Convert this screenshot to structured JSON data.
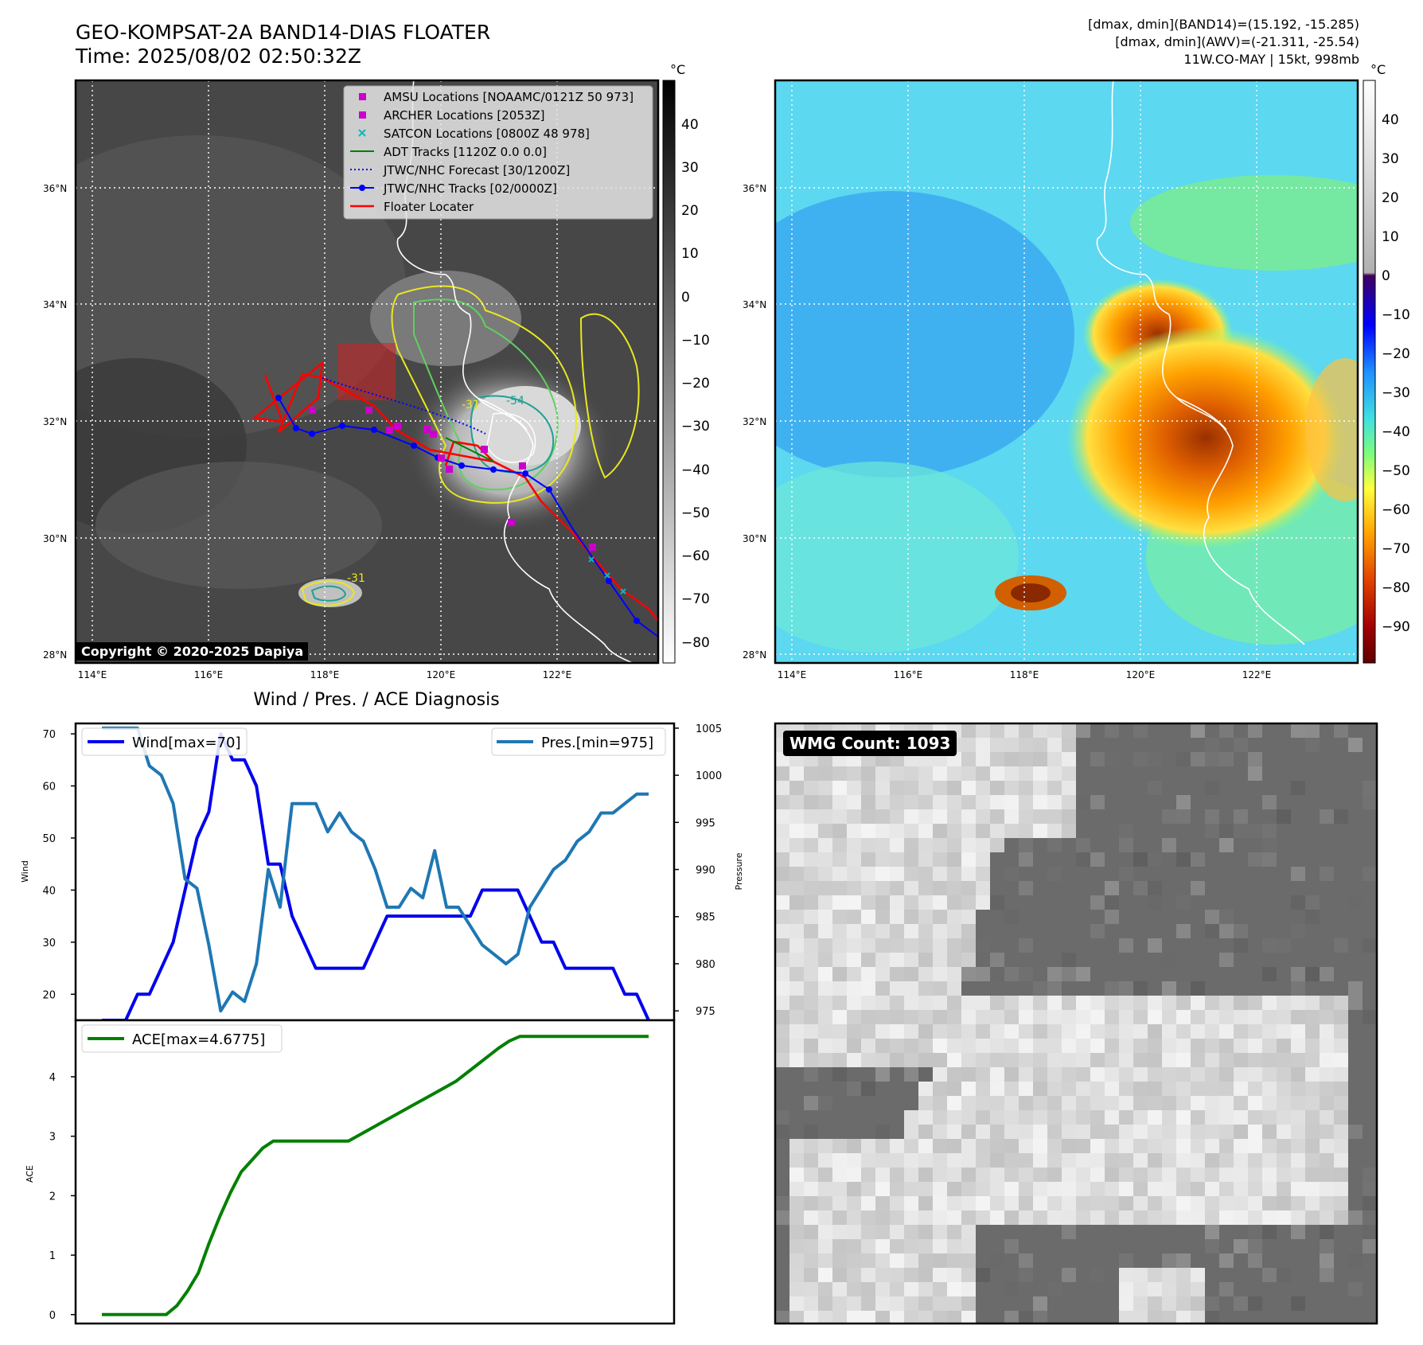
{
  "header": {
    "title_line1": "GEO-KOMPSAT-2A BAND14-DIAS FLOATER",
    "title_line2": "Time: 2025/08/02 02:50:32Z",
    "info_line1": "[dmax, dmin](BAND14)=(15.192, -15.285)",
    "info_line2": "[dmax, dmin](AWV)=(-21.311, -25.54)",
    "info_line3": "11W.CO-MAY | 15kt, 998mb"
  },
  "colors": {
    "wind": "#0000ee",
    "pressure": "#1f77b4",
    "ace": "#008000",
    "track_jtwc": "#0000ff",
    "floater": "#ff0000",
    "amsu": "#cc00cc",
    "satcon": "#00bbbb"
  },
  "map_left": {
    "unit": "°C",
    "colorbar_ticks": [
      "40",
      "30",
      "20",
      "10",
      "0",
      "−10",
      "−20",
      "−30",
      "−40",
      "−50",
      "−60",
      "−70",
      "−80"
    ],
    "lat_labels": [
      "36°N",
      "34°N",
      "32°N",
      "30°N",
      "28°N"
    ],
    "lon_labels": [
      "114°E",
      "116°E",
      "118°E",
      "120°E",
      "122°E"
    ],
    "copyright": "Copyright © 2020-2025 Dapiya",
    "contour_labels": [
      "-54",
      "-31",
      "-31"
    ],
    "legend": [
      {
        "label": "AMSU Locations [NOAAMC/0121Z 50 973]",
        "icon": "square-marker"
      },
      {
        "label": "ARCHER Locations [2053Z]",
        "icon": "square-marker"
      },
      {
        "label": "SATCON Locations [0800Z 48 978]",
        "icon": "x-marker"
      },
      {
        "label": "ADT Tracks [1120Z 0.0 0.0]",
        "icon": "solid-line"
      },
      {
        "label": "JTWC/NHC Forecast [30/1200Z]",
        "icon": "dotted-line"
      },
      {
        "label": "JTWC/NHC Tracks [02/0000Z]",
        "icon": "dot-line"
      },
      {
        "label": "Floater Locater",
        "icon": "solid-line"
      }
    ]
  },
  "map_right": {
    "unit": "°C",
    "colorbar_ticks": [
      "40",
      "30",
      "20",
      "10",
      "0",
      "−10",
      "−20",
      "−30",
      "−40",
      "−50",
      "−60",
      "−70",
      "−80",
      "−90"
    ],
    "lat_labels": [
      "36°N",
      "34°N",
      "32°N",
      "30°N",
      "28°N"
    ],
    "lon_labels": [
      "114°E",
      "116°E",
      "118°E",
      "120°E",
      "122°E"
    ]
  },
  "wmg": {
    "label": "WMG Count: 1093"
  },
  "chart_data": [
    {
      "type": "line",
      "title": "Wind / Pres. / ACE Diagnosis",
      "ylabel": "Wind",
      "y2label": "Pressure",
      "ylim": [
        15,
        72
      ],
      "y2lim": [
        974,
        1005.5
      ],
      "yticks": [
        20,
        30,
        40,
        50,
        60,
        70
      ],
      "y2ticks": [
        975,
        980,
        985,
        990,
        995,
        1000,
        1005
      ],
      "legend_left": "Wind[max=70]",
      "legend_right": "Pres.[min=975]",
      "series": [
        {
          "name": "Wind[max=70]",
          "axis": "left",
          "values": [
            15,
            15,
            15,
            20,
            20,
            25,
            30,
            40,
            50,
            55,
            70,
            65,
            65,
            60,
            45,
            45,
            35,
            30,
            25,
            25,
            25,
            25,
            25,
            30,
            35,
            35,
            35,
            35,
            35,
            35,
            35,
            35,
            40,
            40,
            40,
            40,
            35,
            30,
            30,
            25,
            25,
            25,
            25,
            25,
            20,
            20,
            15
          ]
        },
        {
          "name": "Pres.[min=975]",
          "axis": "right",
          "values": [
            1005,
            1005,
            1005,
            1005,
            1001,
            1000,
            997,
            989,
            988,
            982,
            975,
            977,
            976,
            980,
            990,
            986,
            997,
            997,
            997,
            994,
            996,
            994,
            993,
            990,
            986,
            986,
            988,
            987,
            992,
            986,
            986,
            984,
            982,
            981,
            980,
            981,
            986,
            988,
            990,
            991,
            993,
            994,
            996,
            996,
            997,
            998,
            998
          ]
        }
      ]
    },
    {
      "type": "line",
      "ylabel": "ACE",
      "ylim": [
        -0.15,
        4.95
      ],
      "yticks": [
        0,
        1,
        2,
        3,
        4
      ],
      "series": [
        {
          "name": "ACE[max=4.6775]",
          "values": [
            0,
            0,
            0,
            0,
            0,
            0,
            0,
            0.15,
            0.4,
            0.7,
            1.2,
            1.65,
            2.05,
            2.4,
            2.6,
            2.8,
            2.92,
            2.92,
            2.92,
            2.92,
            2.92,
            2.92,
            2.92,
            2.92,
            3.02,
            3.12,
            3.22,
            3.32,
            3.42,
            3.52,
            3.62,
            3.72,
            3.82,
            3.92,
            4.06,
            4.2,
            4.34,
            4.48,
            4.6,
            4.68,
            4.68,
            4.68,
            4.68,
            4.68,
            4.68,
            4.68,
            4.68,
            4.68,
            4.68,
            4.68,
            4.68,
            4.68
          ]
        }
      ]
    }
  ]
}
